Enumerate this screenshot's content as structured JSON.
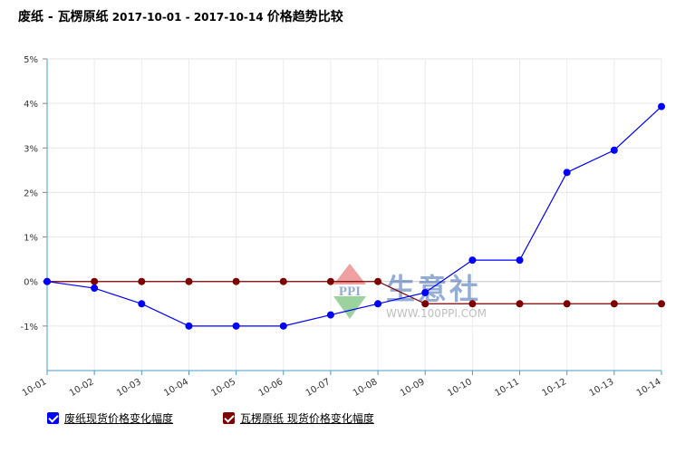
{
  "title": {
    "product": "废纸",
    "sep1": " - ",
    "series": "瓦楞原纸",
    "date_range": " 2017-10-01 - 2017-10-14 ",
    "suffix": "价格趋势比较"
  },
  "watermark": {
    "logo_text": "PPI",
    "brand": "生意社",
    "url": "WWW.100PPI.COM"
  },
  "chart_data": {
    "type": "line",
    "title": "废纸 - 瓦楞原纸 2017-10-01 - 2017-10-14 价格趋势比较",
    "xlabel": "",
    "ylabel": "",
    "categories": [
      "10-01",
      "10-02",
      "10-03",
      "10-04",
      "10-05",
      "10-06",
      "10-07",
      "10-08",
      "10-09",
      "10-10",
      "10-11",
      "10-12",
      "10-13",
      "10-14"
    ],
    "ylim": [
      -2,
      5
    ],
    "yticks": [
      -1,
      0,
      1,
      2,
      3,
      4,
      5
    ],
    "ytick_labels": [
      "-1%",
      "0%",
      "1%",
      "2%",
      "3%",
      "4%",
      "5%"
    ],
    "grid": true,
    "legend_position": "bottom-left",
    "series": [
      {
        "name": "废纸现货价格变化幅度",
        "color": "#0000ff",
        "values": [
          0,
          -0.15,
          -0.5,
          -1.0,
          -1.0,
          -1.0,
          -0.75,
          -0.5,
          -0.25,
          0.48,
          0.48,
          2.45,
          2.95,
          3.93
        ]
      },
      {
        "name": "瓦楞原纸 现货价格变化幅度",
        "color": "#7f0000",
        "values": [
          0,
          0,
          0,
          0,
          0,
          0,
          0,
          0,
          -0.5,
          -0.5,
          -0.5,
          -0.5,
          -0.5,
          -0.5
        ]
      }
    ]
  }
}
